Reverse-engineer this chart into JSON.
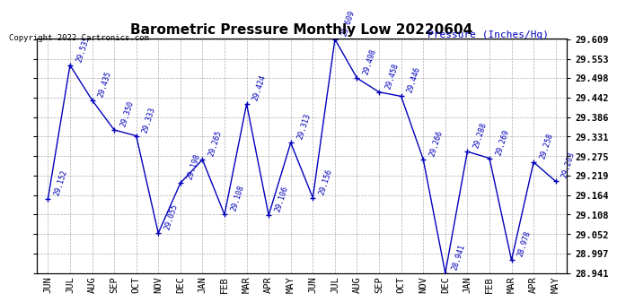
{
  "title": "Barometric Pressure Monthly Low 20220604",
  "copyright": "Copyright 2022 Cartronics.com",
  "ylabel": "Pressure (Inches/Hg)",
  "months": [
    "JUN",
    "JUL",
    "AUG",
    "SEP",
    "OCT",
    "NOV",
    "DEC",
    "JAN",
    "FEB",
    "MAR",
    "APR",
    "MAY",
    "JUN",
    "JUL",
    "AUG",
    "SEP",
    "OCT",
    "NOV",
    "DEC",
    "JAN",
    "FEB",
    "MAR",
    "APR",
    "MAY"
  ],
  "values": [
    29.152,
    29.535,
    29.435,
    29.35,
    29.333,
    29.055,
    29.198,
    29.265,
    29.108,
    29.424,
    29.106,
    29.313,
    29.156,
    29.609,
    29.498,
    29.458,
    29.446,
    29.266,
    28.941,
    29.288,
    29.269,
    28.978,
    29.258,
    29.203
  ],
  "ylim_min": 28.941,
  "ylim_max": 29.609,
  "line_color": "#0000bb",
  "marker": "+",
  "marker_size": 5,
  "marker_linewidth": 1.0,
  "line_width": 1.0,
  "title_fontsize": 11,
  "tick_fontsize": 7.5,
  "label_fontsize": 8,
  "annot_fontsize": 6.0,
  "copyright_fontsize": 6.5,
  "background_color": "#ffffff",
  "grid_color": "#999999",
  "yticks": [
    28.941,
    28.997,
    29.052,
    29.108,
    29.164,
    29.219,
    29.275,
    29.331,
    29.386,
    29.442,
    29.498,
    29.553,
    29.609
  ],
  "annot_rotation": 72
}
